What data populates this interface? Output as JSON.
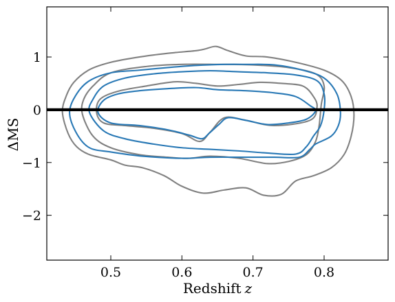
{
  "chart_data": {
    "type": "contour",
    "title": "",
    "xlabel": "Redshift",
    "xlabel_var": "z",
    "ylabel": "ΔMS",
    "xlim": [
      0.41,
      0.89
    ],
    "ylim": [
      -2.85,
      1.95
    ],
    "xticks": [
      0.5,
      0.6,
      0.7,
      0.8
    ],
    "xtick_labels": [
      "0.5",
      "0.6",
      "0.7",
      "0.8"
    ],
    "yticks": [
      -2,
      -1,
      0,
      1
    ],
    "ytick_labels": [
      "−2",
      "−1",
      "0",
      "1"
    ],
    "reference_line": {
      "y": 0,
      "color": "#000000"
    },
    "grid": false,
    "legend": "none",
    "colors": {
      "gray": "#808080",
      "blue": "#2878b5"
    },
    "series": [
      {
        "color": "#808080",
        "contours": [
          [
            [
              0.432,
              -0.05
            ],
            [
              0.44,
              -0.45
            ],
            [
              0.452,
              -0.7
            ],
            [
              0.47,
              -0.85
            ],
            [
              0.5,
              -0.95
            ],
            [
              0.52,
              -1.05
            ],
            [
              0.545,
              -1.1
            ],
            [
              0.575,
              -1.25
            ],
            [
              0.6,
              -1.45
            ],
            [
              0.63,
              -1.58
            ],
            [
              0.66,
              -1.52
            ],
            [
              0.69,
              -1.48
            ],
            [
              0.715,
              -1.62
            ],
            [
              0.74,
              -1.6
            ],
            [
              0.76,
              -1.35
            ],
            [
              0.785,
              -1.25
            ],
            [
              0.81,
              -1.1
            ],
            [
              0.828,
              -0.85
            ],
            [
              0.838,
              -0.5
            ],
            [
              0.842,
              -0.1
            ],
            [
              0.838,
              0.25
            ],
            [
              0.825,
              0.55
            ],
            [
              0.8,
              0.75
            ],
            [
              0.76,
              0.9
            ],
            [
              0.72,
              1.0
            ],
            [
              0.69,
              1.02
            ],
            [
              0.665,
              1.12
            ],
            [
              0.648,
              1.2
            ],
            [
              0.632,
              1.15
            ],
            [
              0.62,
              1.12
            ],
            [
              0.58,
              1.07
            ],
            [
              0.54,
              1.0
            ],
            [
              0.5,
              0.9
            ],
            [
              0.47,
              0.76
            ],
            [
              0.448,
              0.52
            ],
            [
              0.437,
              0.25
            ],
            [
              0.432,
              -0.05
            ]
          ],
          [
            [
              0.46,
              -0.08
            ],
            [
              0.475,
              -0.5
            ],
            [
              0.5,
              -0.72
            ],
            [
              0.54,
              -0.85
            ],
            [
              0.58,
              -0.9
            ],
            [
              0.61,
              -0.92
            ],
            [
              0.64,
              -0.88
            ],
            [
              0.68,
              -0.92
            ],
            [
              0.72,
              -1.02
            ],
            [
              0.75,
              -0.98
            ],
            [
              0.775,
              -0.85
            ],
            [
              0.788,
              -0.6
            ],
            [
              0.793,
              -0.3
            ],
            [
              0.796,
              0.1
            ],
            [
              0.8,
              0.45
            ],
            [
              0.788,
              0.68
            ],
            [
              0.75,
              0.8
            ],
            [
              0.7,
              0.85
            ],
            [
              0.65,
              0.86
            ],
            [
              0.6,
              0.86
            ],
            [
              0.55,
              0.82
            ],
            [
              0.5,
              0.7
            ],
            [
              0.475,
              0.45
            ],
            [
              0.462,
              0.2
            ],
            [
              0.46,
              -0.08
            ]
          ],
          [
            [
              0.48,
              -0.05
            ],
            [
              0.49,
              -0.25
            ],
            [
              0.52,
              -0.3
            ],
            [
              0.56,
              -0.35
            ],
            [
              0.6,
              -0.45
            ],
            [
              0.625,
              -0.6
            ],
            [
              0.64,
              -0.42
            ],
            [
              0.66,
              -0.15
            ],
            [
              0.69,
              -0.2
            ],
            [
              0.73,
              -0.3
            ],
            [
              0.78,
              -0.2
            ],
            [
              0.79,
              0.05
            ],
            [
              0.785,
              0.25
            ],
            [
              0.77,
              0.45
            ],
            [
              0.74,
              0.5
            ],
            [
              0.71,
              0.52
            ],
            [
              0.68,
              0.48
            ],
            [
              0.65,
              0.45
            ],
            [
              0.62,
              0.5
            ],
            [
              0.59,
              0.53
            ],
            [
              0.55,
              0.45
            ],
            [
              0.51,
              0.35
            ],
            [
              0.485,
              0.2
            ],
            [
              0.48,
              -0.05
            ]
          ]
        ]
      },
      {
        "color": "#2878b5",
        "contours": [
          [
            [
              0.442,
              -0.05
            ],
            [
              0.452,
              -0.45
            ],
            [
              0.47,
              -0.72
            ],
            [
              0.5,
              -0.8
            ],
            [
              0.545,
              -0.88
            ],
            [
              0.6,
              -0.92
            ],
            [
              0.64,
              -0.9
            ],
            [
              0.69,
              -0.9
            ],
            [
              0.73,
              -0.9
            ],
            [
              0.765,
              -0.9
            ],
            [
              0.78,
              -0.75
            ],
            [
              0.788,
              -0.65
            ],
            [
              0.81,
              -0.5
            ],
            [
              0.82,
              -0.3
            ],
            [
              0.823,
              -0.05
            ],
            [
              0.818,
              0.3
            ],
            [
              0.8,
              0.6
            ],
            [
              0.77,
              0.75
            ],
            [
              0.73,
              0.85
            ],
            [
              0.69,
              0.86
            ],
            [
              0.66,
              0.86
            ],
            [
              0.62,
              0.84
            ],
            [
              0.58,
              0.8
            ],
            [
              0.54,
              0.75
            ],
            [
              0.5,
              0.7
            ],
            [
              0.47,
              0.55
            ],
            [
              0.452,
              0.3
            ],
            [
              0.442,
              -0.05
            ]
          ],
          [
            [
              0.47,
              -0.05
            ],
            [
              0.49,
              -0.4
            ],
            [
              0.52,
              -0.55
            ],
            [
              0.56,
              -0.65
            ],
            [
              0.6,
              -0.72
            ],
            [
              0.64,
              -0.75
            ],
            [
              0.68,
              -0.78
            ],
            [
              0.72,
              -0.82
            ],
            [
              0.76,
              -0.84
            ],
            [
              0.775,
              -0.7
            ],
            [
              0.785,
              -0.5
            ],
            [
              0.795,
              -0.3
            ],
            [
              0.8,
              0.0
            ],
            [
              0.8,
              0.3
            ],
            [
              0.79,
              0.55
            ],
            [
              0.76,
              0.66
            ],
            [
              0.72,
              0.7
            ],
            [
              0.68,
              0.72
            ],
            [
              0.64,
              0.74
            ],
            [
              0.6,
              0.72
            ],
            [
              0.56,
              0.68
            ],
            [
              0.52,
              0.6
            ],
            [
              0.49,
              0.45
            ],
            [
              0.475,
              0.2
            ],
            [
              0.47,
              -0.05
            ]
          ],
          [
            [
              0.482,
              -0.05
            ],
            [
              0.5,
              -0.25
            ],
            [
              0.54,
              -0.3
            ],
            [
              0.58,
              -0.38
            ],
            [
              0.61,
              -0.48
            ],
            [
              0.628,
              -0.55
            ],
            [
              0.638,
              -0.45
            ],
            [
              0.652,
              -0.28
            ],
            [
              0.665,
              -0.15
            ],
            [
              0.69,
              -0.2
            ],
            [
              0.72,
              -0.28
            ],
            [
              0.75,
              -0.25
            ],
            [
              0.775,
              -0.18
            ],
            [
              0.788,
              -0.02
            ],
            [
              0.78,
              0.08
            ],
            [
              0.76,
              0.25
            ],
            [
              0.73,
              0.32
            ],
            [
              0.69,
              0.36
            ],
            [
              0.65,
              0.38
            ],
            [
              0.62,
              0.42
            ],
            [
              0.58,
              0.4
            ],
            [
              0.54,
              0.36
            ],
            [
              0.51,
              0.3
            ],
            [
              0.49,
              0.18
            ],
            [
              0.482,
              -0.05
            ]
          ]
        ]
      }
    ]
  }
}
